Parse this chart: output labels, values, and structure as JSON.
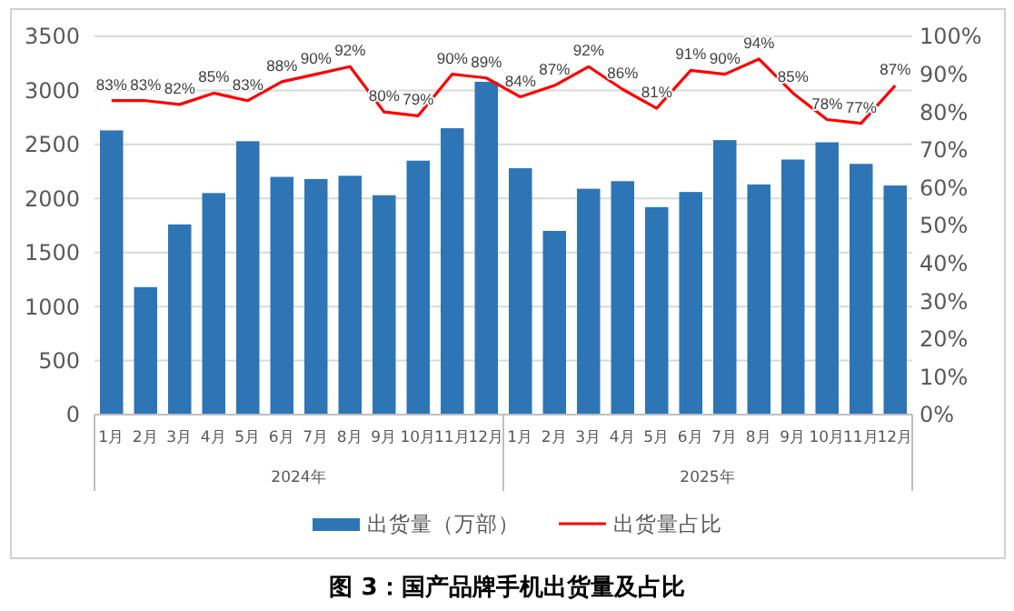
{
  "chart_data": {
    "type": "bar",
    "title": "图 3：国产品牌手机出货量及占比",
    "categories": [
      "1月",
      "2月",
      "3月",
      "4月",
      "5月",
      "6月",
      "7月",
      "8月",
      "9月",
      "10月",
      "11月",
      "12月",
      "1月",
      "2月",
      "3月",
      "4月",
      "5月",
      "6月",
      "7月",
      "8月",
      "9月",
      "10月",
      "11月",
      "12月"
    ],
    "series": [
      {
        "name": "出货量（万部）",
        "color": "#2e75b6",
        "values": [
          2630,
          1180,
          1760,
          2050,
          2530,
          2200,
          2180,
          2210,
          2030,
          2350,
          2650,
          3080,
          2280,
          1700,
          2090,
          2160,
          1920,
          2060,
          2540,
          2130,
          2360,
          2520,
          2320,
          2120
        ]
      },
      {
        "name": "出货量占比",
        "type": "line",
        "axis": "y2",
        "color": "#ff0000",
        "marker": "none",
        "values": [
          83,
          83,
          82,
          85,
          83,
          88,
          90,
          92,
          80,
          79,
          90,
          89,
          84,
          87,
          92,
          86,
          81,
          91,
          90,
          94,
          85,
          78,
          77,
          87
        ],
        "value_labels": [
          "83%",
          "83%",
          "82%",
          "85%",
          "83%",
          "88%",
          "90%",
          "92%",
          "80%",
          "79%",
          "90%",
          "89%",
          "84%",
          "87%",
          "92%",
          "86%",
          "81%",
          "91%",
          "90%",
          "94%",
          "85%",
          "78%",
          "77%",
          "87%"
        ]
      }
    ],
    "ylim": [
      0,
      3500
    ],
    "yticks": [
      0,
      500,
      1000,
      1500,
      2000,
      2500,
      3000,
      3500
    ],
    "y2lim": [
      0,
      100
    ],
    "y2ticks": [
      {
        "value": 0,
        "label": "0%"
      },
      {
        "value": 10,
        "label": "10%"
      },
      {
        "value": 20,
        "label": "20%"
      },
      {
        "value": 30,
        "label": "30%"
      },
      {
        "value": 40,
        "label": "40%"
      },
      {
        "value": 50,
        "label": "50%"
      },
      {
        "value": 60,
        "label": "60%"
      },
      {
        "value": 70,
        "label": "70%"
      },
      {
        "value": 80,
        "label": "80%"
      },
      {
        "value": 90,
        "label": "90%"
      },
      {
        "value": 100,
        "label": "100%"
      }
    ],
    "grid": "y",
    "legend": "bottom",
    "annotations": [
      "2024年",
      "2025年"
    ]
  }
}
